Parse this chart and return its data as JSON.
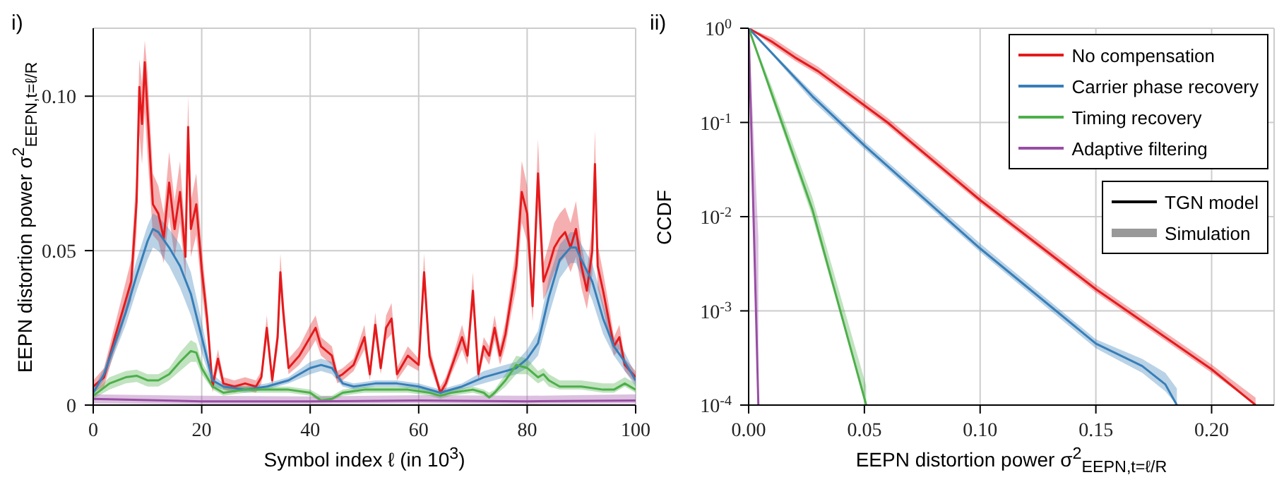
{
  "chart_data": [
    {
      "type": "line",
      "title": "i)",
      "xlabel": "Symbol index ℓ (in 10$^{3}$)",
      "ylabel": "EEPN distortion power σ$^{2}$$_{EEPN,t=ℓ/R}$",
      "xlim": [
        0,
        100
      ],
      "xticks": [
        0,
        20,
        40,
        60,
        80,
        100
      ],
      "ylim": [
        0,
        0.122
      ],
      "yticks": [
        0,
        0.05,
        {
          "value": 0.1,
          "label": "0.10"
        }
      ],
      "grid": true,
      "legend": false,
      "line_style": "solid",
      "marker": "none",
      "series": [
        {
          "color": "#e41a1c",
          "x": [
            0,
            2,
            4,
            5,
            6,
            7,
            8,
            8.5,
            9,
            9.5,
            10,
            11,
            12,
            13,
            14,
            15,
            16,
            17,
            17.5,
            18,
            19,
            20,
            21,
            22,
            23,
            24,
            26,
            28,
            30,
            31,
            32,
            33,
            34,
            34.5,
            35,
            36,
            38,
            40,
            41,
            42,
            44,
            45,
            46,
            48,
            50,
            51,
            52,
            53,
            54,
            55,
            56,
            58,
            60,
            61,
            62,
            63,
            64,
            65,
            66,
            68,
            69,
            70,
            71,
            72,
            73,
            74,
            75,
            76,
            77,
            78,
            79,
            80,
            81,
            82,
            83,
            84,
            85,
            86,
            87,
            88,
            89,
            90,
            91,
            92,
            92.5,
            93,
            94,
            95,
            96,
            97,
            98,
            100
          ],
          "values": [
            0.006,
            0.009,
            0.022,
            0.028,
            0.034,
            0.04,
            0.066,
            0.103,
            0.091,
            0.111,
            0.095,
            0.065,
            0.062,
            0.054,
            0.072,
            0.057,
            0.069,
            0.048,
            0.09,
            0.057,
            0.065,
            0.044,
            0.028,
            0.006,
            0.015,
            0.007,
            0.006,
            0.007,
            0.006,
            0.009,
            0.025,
            0.008,
            0.022,
            0.043,
            0.031,
            0.012,
            0.016,
            0.022,
            0.025,
            0.019,
            0.016,
            0.009,
            0.01,
            0.013,
            0.022,
            0.01,
            0.026,
            0.012,
            0.025,
            0.028,
            0.01,
            0.016,
            0.013,
            0.043,
            0.016,
            0.01,
            0.004,
            0.007,
            0.012,
            0.022,
            0.016,
            0.037,
            0.01,
            0.019,
            0.016,
            0.025,
            0.016,
            0.023,
            0.034,
            0.045,
            0.069,
            0.062,
            0.032,
            0.075,
            0.04,
            0.045,
            0.051,
            0.054,
            0.056,
            0.051,
            0.057,
            0.045,
            0.037,
            0.05,
            0.078,
            0.045,
            0.037,
            0.028,
            0.019,
            0.022,
            0.013,
            0.009
          ],
          "lower": [
            0.004,
            0.006,
            0.018,
            0.023,
            0.029,
            0.034,
            0.056,
            0.088,
            0.078,
            0.095,
            0.081,
            0.055,
            0.053,
            0.046,
            0.061,
            0.048,
            0.059,
            0.041,
            0.077,
            0.048,
            0.055,
            0.037,
            0.023,
            0.004,
            0.012,
            0.005,
            0.004,
            0.005,
            0.004,
            0.007,
            0.021,
            0.006,
            0.018,
            0.037,
            0.026,
            0.01,
            0.013,
            0.018,
            0.021,
            0.016,
            0.013,
            0.007,
            0.008,
            0.011,
            0.018,
            0.008,
            0.022,
            0.01,
            0.021,
            0.023,
            0.008,
            0.013,
            0.011,
            0.037,
            0.013,
            0.008,
            0.003,
            0.005,
            0.01,
            0.018,
            0.013,
            0.031,
            0.008,
            0.016,
            0.013,
            0.021,
            0.013,
            0.019,
            0.029,
            0.038,
            0.059,
            0.053,
            0.027,
            0.064,
            0.034,
            0.038,
            0.043,
            0.046,
            0.048,
            0.043,
            0.048,
            0.038,
            0.031,
            0.042,
            0.066,
            0.038,
            0.031,
            0.023,
            0.016,
            0.018,
            0.011,
            0.007
          ],
          "upper": [
            0.008,
            0.012,
            0.026,
            0.033,
            0.04,
            0.047,
            0.076,
            0.112,
            0.104,
            0.118,
            0.108,
            0.075,
            0.071,
            0.062,
            0.082,
            0.066,
            0.079,
            0.055,
            0.1,
            0.066,
            0.075,
            0.051,
            0.033,
            0.009,
            0.018,
            0.009,
            0.008,
            0.009,
            0.008,
            0.011,
            0.029,
            0.01,
            0.026,
            0.049,
            0.036,
            0.015,
            0.019,
            0.026,
            0.029,
            0.022,
            0.019,
            0.011,
            0.012,
            0.015,
            0.026,
            0.012,
            0.03,
            0.014,
            0.029,
            0.033,
            0.012,
            0.019,
            0.015,
            0.049,
            0.019,
            0.012,
            0.006,
            0.009,
            0.014,
            0.026,
            0.019,
            0.043,
            0.012,
            0.022,
            0.019,
            0.029,
            0.019,
            0.027,
            0.039,
            0.052,
            0.079,
            0.071,
            0.037,
            0.086,
            0.046,
            0.052,
            0.059,
            0.062,
            0.064,
            0.059,
            0.066,
            0.052,
            0.043,
            0.058,
            0.089,
            0.052,
            0.043,
            0.033,
            0.022,
            0.026,
            0.015,
            0.011
          ]
        },
        {
          "color": "#377eb8",
          "x": [
            0,
            2,
            4,
            6,
            8,
            10,
            11,
            12,
            14,
            16,
            18,
            20,
            22,
            24,
            28,
            32,
            36,
            40,
            42,
            44,
            46,
            48,
            52,
            56,
            60,
            64,
            68,
            72,
            76,
            78,
            80,
            82,
            84,
            86,
            88,
            89,
            90,
            92,
            94,
            96,
            98,
            100
          ],
          "values": [
            0.004,
            0.01,
            0.02,
            0.03,
            0.042,
            0.053,
            0.057,
            0.056,
            0.051,
            0.045,
            0.036,
            0.022,
            0.008,
            0.006,
            0.005,
            0.006,
            0.008,
            0.012,
            0.013,
            0.012,
            0.007,
            0.006,
            0.007,
            0.007,
            0.006,
            0.004,
            0.006,
            0.009,
            0.011,
            0.012,
            0.015,
            0.02,
            0.035,
            0.047,
            0.051,
            0.051,
            0.047,
            0.04,
            0.028,
            0.019,
            0.014,
            0.008
          ],
          "lower": [
            0.003,
            0.008,
            0.017,
            0.026,
            0.037,
            0.047,
            0.051,
            0.05,
            0.045,
            0.038,
            0.029,
            0.017,
            0.006,
            0.005,
            0.004,
            0.005,
            0.007,
            0.01,
            0.011,
            0.01,
            0.006,
            0.005,
            0.006,
            0.006,
            0.005,
            0.003,
            0.005,
            0.007,
            0.009,
            0.01,
            0.012,
            0.016,
            0.029,
            0.041,
            0.046,
            0.046,
            0.042,
            0.034,
            0.023,
            0.016,
            0.011,
            0.006
          ],
          "upper": [
            0.005,
            0.012,
            0.023,
            0.034,
            0.047,
            0.058,
            0.062,
            0.061,
            0.057,
            0.052,
            0.043,
            0.027,
            0.01,
            0.007,
            0.006,
            0.007,
            0.009,
            0.014,
            0.015,
            0.014,
            0.008,
            0.007,
            0.008,
            0.008,
            0.007,
            0.005,
            0.007,
            0.011,
            0.013,
            0.014,
            0.018,
            0.024,
            0.041,
            0.052,
            0.056,
            0.056,
            0.052,
            0.046,
            0.033,
            0.022,
            0.017,
            0.01
          ]
        },
        {
          "color": "#4daf4a",
          "x": [
            0,
            3,
            6,
            8,
            10,
            12,
            14,
            16,
            18,
            19,
            20,
            22,
            24,
            28,
            32,
            36,
            40,
            42,
            44,
            46,
            50,
            54,
            58,
            62,
            64,
            66,
            70,
            72,
            73,
            74,
            76,
            78,
            80,
            82,
            83,
            84,
            86,
            90,
            94,
            96,
            98,
            100
          ],
          "values": [
            0.003,
            0.007,
            0.009,
            0.0095,
            0.008,
            0.008,
            0.01,
            0.014,
            0.0175,
            0.017,
            0.012,
            0.006,
            0.004,
            0.005,
            0.005,
            0.005,
            0.004,
            0.0015,
            0.002,
            0.004,
            0.005,
            0.005,
            0.005,
            0.004,
            0.003,
            0.004,
            0.005,
            0.004,
            0.0025,
            0.004,
            0.008,
            0.013,
            0.012,
            0.009,
            0.01,
            0.008,
            0.006,
            0.006,
            0.005,
            0.005,
            0.007,
            0.005
          ],
          "lower": [
            0.002,
            0.005,
            0.007,
            0.0075,
            0.006,
            0.006,
            0.008,
            0.011,
            0.014,
            0.014,
            0.01,
            0.005,
            0.003,
            0.004,
            0.004,
            0.004,
            0.003,
            0.001,
            0.0015,
            0.003,
            0.004,
            0.004,
            0.004,
            0.003,
            0.002,
            0.003,
            0.004,
            0.003,
            0.002,
            0.003,
            0.006,
            0.01,
            0.01,
            0.007,
            0.008,
            0.006,
            0.005,
            0.005,
            0.004,
            0.004,
            0.006,
            0.004
          ],
          "upper": [
            0.004,
            0.009,
            0.011,
            0.0115,
            0.01,
            0.01,
            0.012,
            0.017,
            0.021,
            0.02,
            0.014,
            0.008,
            0.006,
            0.006,
            0.006,
            0.006,
            0.005,
            0.003,
            0.003,
            0.005,
            0.006,
            0.006,
            0.006,
            0.005,
            0.004,
            0.005,
            0.006,
            0.005,
            0.004,
            0.005,
            0.01,
            0.016,
            0.015,
            0.011,
            0.012,
            0.01,
            0.008,
            0.008,
            0.007,
            0.007,
            0.009,
            0.007
          ]
        },
        {
          "color": "#984ea3",
          "x": [
            0,
            20,
            40,
            60,
            80,
            100
          ],
          "values": [
            0.002,
            0.0012,
            0.0012,
            0.0015,
            0.0012,
            0.0015
          ],
          "lower": [
            0.0005,
            0.0003,
            0.0003,
            0.0005,
            0.0003,
            0.0005
          ],
          "upper": [
            0.0035,
            0.003,
            0.0028,
            0.0032,
            0.003,
            0.0035
          ]
        }
      ]
    },
    {
      "type": "line",
      "title": "ii)",
      "xlabel": "EEPN distortion power σ$^{2}$$_{EEPN,t=ℓ/R}$",
      "ylabel": "CCDF",
      "log": "y",
      "xlim": [
        0,
        0.227
      ],
      "xticks": [
        {
          "value": 0,
          "label": "0.00"
        },
        0.05,
        {
          "value": 0.1,
          "label": "0.10"
        },
        0.15,
        {
          "value": 0.2,
          "label": "0.20"
        }
      ],
      "ylim": [
        0.0001,
        1
      ],
      "yticks": [
        {
          "value": 0.0001,
          "label": "10$^{-4}$"
        },
        {
          "value": 0.001,
          "label": "10$^{-3}$"
        },
        {
          "value": 0.01,
          "label": "10$^{-2}$"
        },
        {
          "value": 0.1,
          "label": "10$^{-1}$"
        },
        {
          "value": 1,
          "label": "10$^{0}$"
        }
      ],
      "grid": true,
      "legend": "top right",
      "line_style": "solid",
      "marker": "none",
      "annotations": [
        "TGN model",
        "Simulation"
      ],
      "series": [
        {
          "name": "No compensation",
          "color": "#e41a1c",
          "x": [
            0,
            0.01,
            0.02,
            0.03,
            0.06,
            0.1,
            0.15,
            0.2,
            0.219
          ],
          "values": [
            1,
            0.72,
            0.49,
            0.35,
            0.1,
            0.015,
            0.0017,
            0.00024,
            0.0001
          ],
          "lower": [
            1,
            0.66,
            0.45,
            0.32,
            0.092,
            0.0138,
            0.00156,
            0.00022,
            0.0001
          ],
          "upper": [
            1,
            0.8,
            0.55,
            0.39,
            0.112,
            0.0168,
            0.0019,
            0.00027,
            0.00012
          ]
        },
        {
          "name": "Carrier phase recovery",
          "color": "#377eb8",
          "x": [
            0,
            0.0275,
            0.05,
            0.1,
            0.15,
            0.17,
            0.18,
            0.185
          ],
          "values": [
            1,
            0.19,
            0.057,
            0.0046,
            0.00045,
            0.00026,
            0.000166,
            0.0001
          ],
          "lower": [
            1,
            0.17,
            0.052,
            0.0042,
            0.0004,
            0.00022,
            0.00014,
            0.0001
          ],
          "upper": [
            1,
            0.21,
            0.063,
            0.0052,
            0.0005,
            0.00031,
            0.00022,
            0.00015
          ]
        },
        {
          "name": "Timing recovery",
          "color": "#4daf4a",
          "x": [
            0,
            0.01,
            0.0275,
            0.0508
          ],
          "values": [
            1,
            0.2,
            0.012,
            0.0001
          ],
          "lower": [
            1,
            0.18,
            0.01,
            0.0001
          ],
          "upper": [
            1,
            0.24,
            0.016,
            0.00016
          ]
        },
        {
          "name": "Adaptive filtering",
          "color": "#984ea3",
          "x": [
            0,
            0.002,
            0.0042
          ],
          "values": [
            1,
            0.0126,
            0.0001
          ],
          "lower": [
            1,
            0.01,
            0.0001
          ],
          "upper": [
            1,
            0.089,
            0.006
          ]
        }
      ]
    }
  ]
}
